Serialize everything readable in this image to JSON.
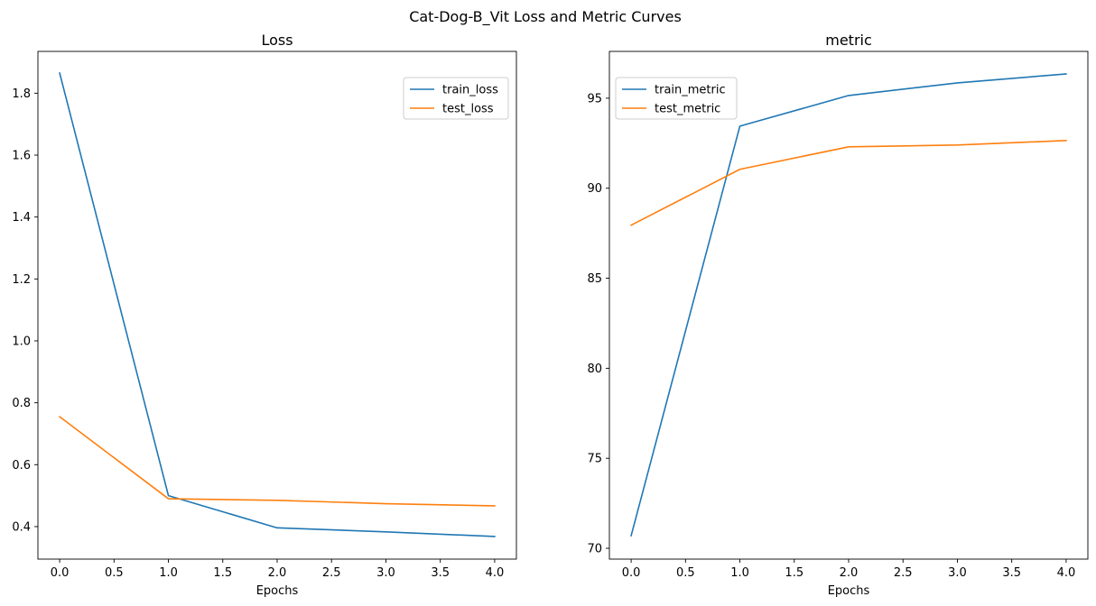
{
  "suptitle": "Cat-Dog-B_Vit Loss and Metric Curves",
  "chart_data": [
    {
      "type": "line",
      "title": "Loss",
      "xlabel": "Epochs",
      "ylabel": "",
      "x": [
        0,
        1,
        2,
        3,
        4
      ],
      "xlim": [
        -0.2,
        4.2
      ],
      "ylim": [
        0.295,
        1.935
      ],
      "xticks": [
        0.0,
        0.5,
        1.0,
        1.5,
        2.0,
        2.5,
        3.0,
        3.5,
        4.0
      ],
      "xtick_labels": [
        "0.0",
        "0.5",
        "1.0",
        "1.5",
        "2.0",
        "2.5",
        "3.0",
        "3.5",
        "4.0"
      ],
      "yticks": [
        0.4,
        0.6,
        0.8,
        1.0,
        1.2,
        1.4,
        1.6,
        1.8
      ],
      "ytick_labels": [
        "0.4",
        "0.6",
        "0.8",
        "1.0",
        "1.2",
        "1.4",
        "1.6",
        "1.8"
      ],
      "legend_position": "top-right",
      "grid": false,
      "series": [
        {
          "name": "train_loss",
          "color": "#1f77b4",
          "values": [
            1.865,
            0.5,
            0.396,
            0.383,
            0.368
          ]
        },
        {
          "name": "test_loss",
          "color": "#ff7f0e",
          "values": [
            0.755,
            0.49,
            0.485,
            0.474,
            0.467
          ]
        }
      ]
    },
    {
      "type": "line",
      "title": "metric",
      "xlabel": "Epochs",
      "ylabel": "",
      "x": [
        0,
        1,
        2,
        3,
        4
      ],
      "xlim": [
        -0.2,
        4.2
      ],
      "ylim": [
        69.4,
        97.6
      ],
      "xticks": [
        0.0,
        0.5,
        1.0,
        1.5,
        2.0,
        2.5,
        3.0,
        3.5,
        4.0
      ],
      "xtick_labels": [
        "0.0",
        "0.5",
        "1.0",
        "1.5",
        "2.0",
        "2.5",
        "3.0",
        "3.5",
        "4.0"
      ],
      "yticks": [
        70,
        75,
        80,
        85,
        90,
        95
      ],
      "ytick_labels": [
        "70",
        "75",
        "80",
        "85",
        "90",
        "95"
      ],
      "legend_position": "top-left",
      "grid": false,
      "series": [
        {
          "name": "train_metric",
          "color": "#1f77b4",
          "values": [
            70.7,
            93.45,
            95.15,
            95.85,
            96.35
          ]
        },
        {
          "name": "test_metric",
          "color": "#ff7f0e",
          "values": [
            87.95,
            91.05,
            92.3,
            92.4,
            92.65
          ]
        }
      ]
    }
  ]
}
